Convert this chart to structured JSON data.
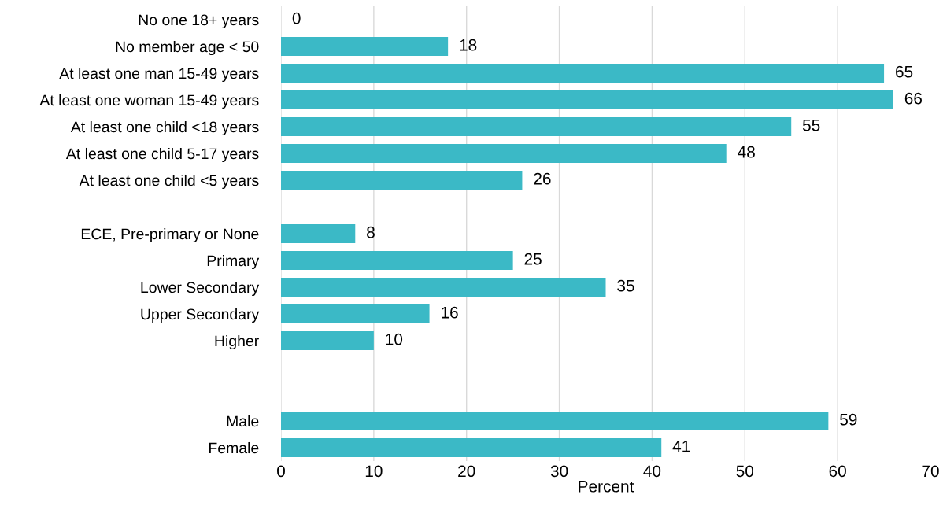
{
  "chart_data": {
    "type": "bar",
    "orientation": "horizontal",
    "xlabel": "Percent",
    "categories": [
      "No one 18+ years",
      "No member age < 50",
      "At least one man 15-49 years",
      "At least one woman 15-49 years",
      "At least one child <18 years",
      "At least one child 5-17 years",
      "At least one child <5 years",
      null,
      "ECE, Pre-primary or None",
      "Primary",
      "Lower Secondary",
      "Upper Secondary",
      "Higher",
      null,
      null,
      "Male",
      "Female"
    ],
    "values": [
      0,
      18,
      65,
      66,
      55,
      48,
      26,
      null,
      8,
      25,
      35,
      16,
      10,
      null,
      null,
      59,
      41
    ],
    "color": "#3bb9c6",
    "data_labels": true,
    "xlim": [
      0,
      70
    ],
    "xticks": [
      0,
      10,
      20,
      30,
      40,
      50,
      60,
      70
    ],
    "grid": "x",
    "legend": false
  }
}
